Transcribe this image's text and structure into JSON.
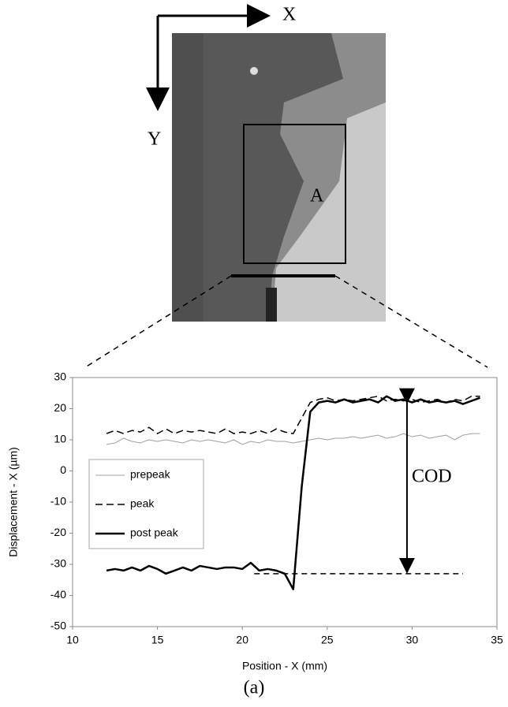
{
  "figure": {
    "axis_labels": [
      "X",
      "Y"
    ],
    "region_label": "A",
    "caption": "(a)"
  },
  "chart_data": {
    "type": "line",
    "x_label": "Position - X (mm)",
    "y_label": "Displacement - X (µm)",
    "xlim": [
      10,
      35
    ],
    "xticks": [
      10,
      15,
      20,
      25,
      30,
      35
    ],
    "ylim": [
      -50,
      30
    ],
    "yticks": [
      -50,
      -40,
      -30,
      -20,
      -10,
      0,
      10,
      20,
      30
    ],
    "grid": false,
    "legend": "left",
    "x": [
      12,
      12.5,
      13,
      13.5,
      14,
      14.5,
      15,
      15.5,
      16,
      16.5,
      17,
      17.5,
      18,
      18.5,
      19,
      19.5,
      20,
      20.5,
      21,
      21.5,
      22,
      22.5,
      23,
      23.5,
      24,
      24.5,
      25,
      25.5,
      26,
      26.5,
      27,
      27.5,
      28,
      28.5,
      29,
      29.5,
      30,
      30.5,
      31,
      31.5,
      32,
      32.5,
      33,
      33.5,
      34
    ],
    "series": [
      {
        "name": "prepeak",
        "color": "#a0a0a0",
        "width": 1,
        "dashed": false,
        "values": [
          8.5,
          9,
          10.5,
          9.5,
          9,
          10,
          9.5,
          10,
          9.5,
          9,
          10,
          9.5,
          10,
          9.5,
          9,
          10,
          8.5,
          9.5,
          9,
          10,
          9.5,
          9.5,
          9,
          9.5,
          10,
          10.5,
          10,
          10.5,
          10.5,
          11,
          10.5,
          11,
          11.5,
          10.5,
          11,
          12,
          11,
          11.5,
          10.5,
          11,
          11.5,
          10,
          11.5,
          12,
          12
        ]
      },
      {
        "name": "peak",
        "color": "#000000",
        "width": 1.5,
        "dashed": true,
        "values": [
          12,
          13,
          12,
          13,
          12.5,
          14,
          12,
          13.5,
          12,
          13,
          12.5,
          13,
          12.5,
          12,
          13.5,
          12,
          12.5,
          12,
          13,
          12,
          13.5,
          12.5,
          12,
          17,
          22,
          23,
          23.5,
          22.5,
          23,
          22.5,
          23,
          23.5,
          24,
          22.5,
          23,
          22.5,
          23,
          22,
          22.5,
          23,
          22,
          23,
          22.5,
          24,
          24
        ]
      },
      {
        "name": "post peak",
        "color": "#000000",
        "width": 2.5,
        "dashed": false,
        "values": [
          -32,
          -31.5,
          -32,
          -31,
          -32,
          -30.5,
          -31.5,
          -33,
          -32,
          -31,
          -32,
          -30.5,
          -31,
          -31.5,
          -31,
          -31,
          -31.5,
          -29.5,
          -32,
          -31.5,
          -32,
          -33,
          -38,
          -5,
          19,
          22,
          22.5,
          22,
          23,
          22,
          22.5,
          23,
          22,
          24,
          22.5,
          23,
          22,
          23,
          22,
          22.5,
          22,
          22.5,
          21.5,
          22.5,
          23.5
        ]
      }
    ],
    "annotation": {
      "text": "COD",
      "x": 29.7,
      "y": [
        22.5,
        -33
      ]
    },
    "reference_line": {
      "y": -33,
      "x": [
        20.7,
        33
      ]
    }
  }
}
